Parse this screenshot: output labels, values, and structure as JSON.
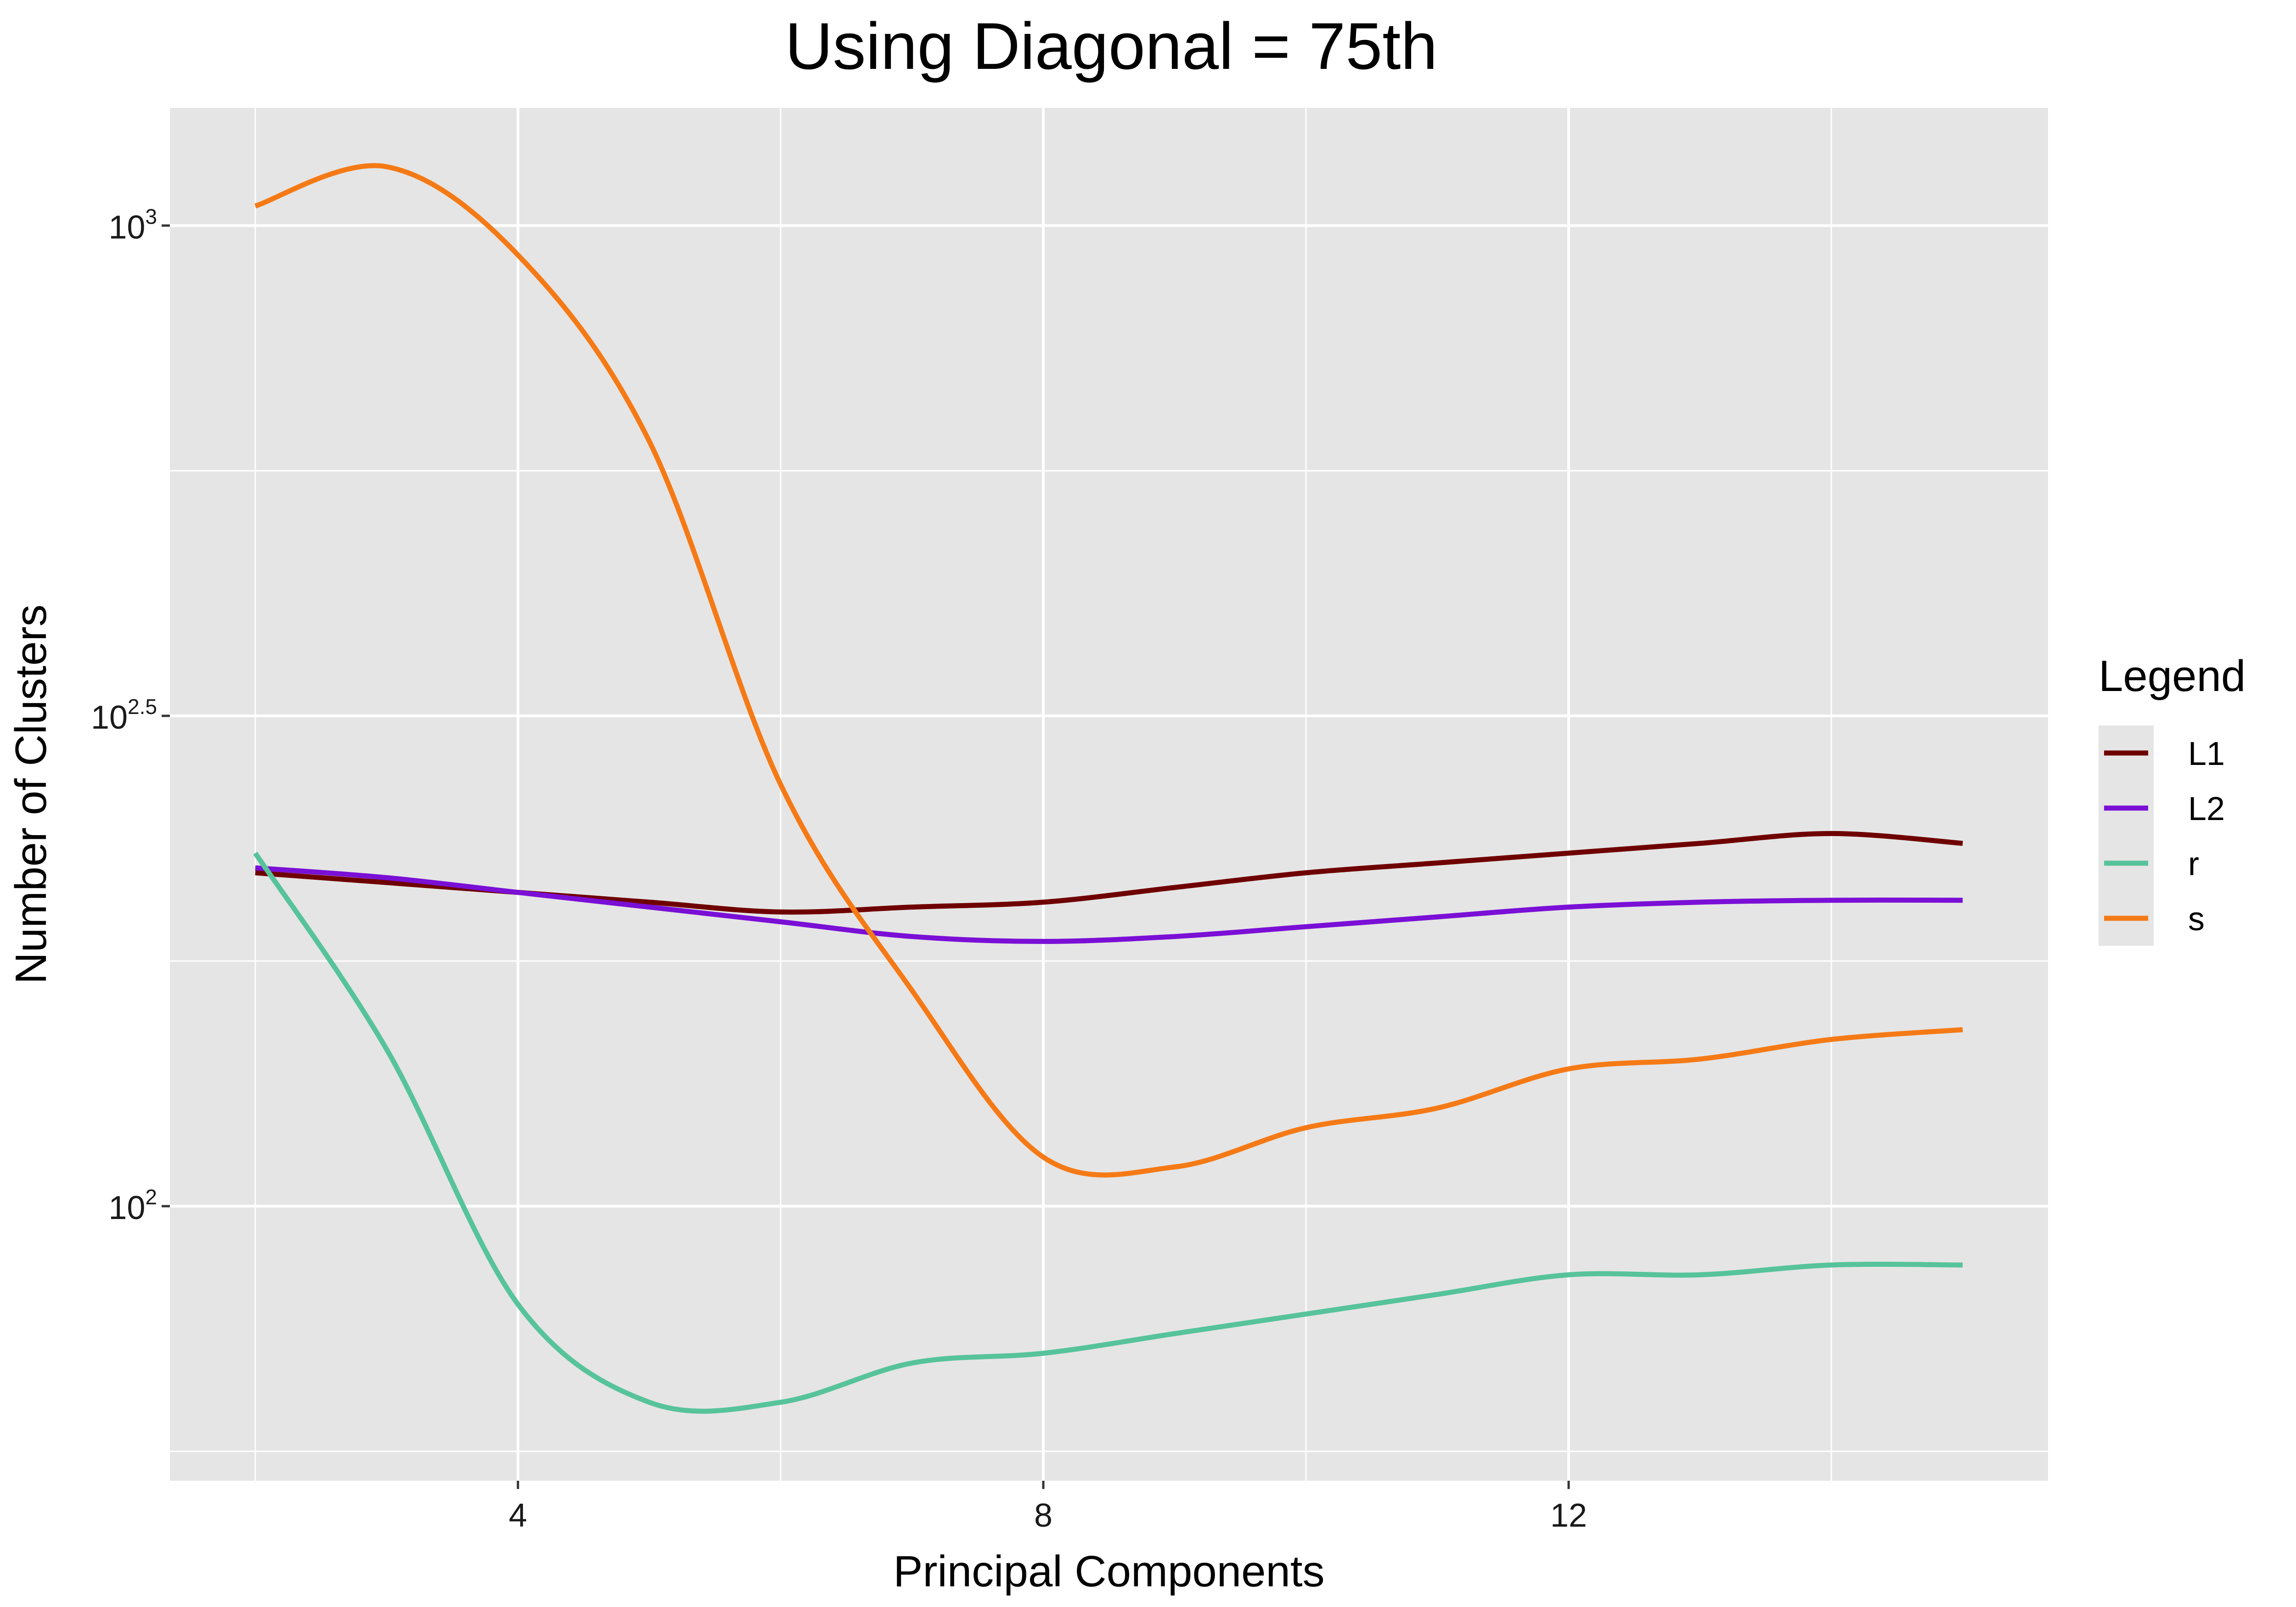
{
  "chart_data": {
    "type": "line",
    "title": "Using Diagonal = 75th",
    "xlabel": "Principal Components",
    "ylabel": "Number of Clusters",
    "xlim": [
      1.35,
      15.65
    ],
    "ylog10lim": [
      1.72,
      3.12
    ],
    "x_ticks": [
      4,
      8,
      12
    ],
    "x_tick_labels": [
      "4",
      "8",
      "12"
    ],
    "y_ticks": [
      {
        "value": 3,
        "base": "10",
        "exp": "3"
      },
      {
        "value": 2.5,
        "base": "10",
        "exp": "2.5"
      },
      {
        "value": 2,
        "base": "10",
        "exp": "2"
      }
    ],
    "y_scale": "log10",
    "grid": true,
    "legend": {
      "title": "Legend",
      "position": "right"
    },
    "background": "#e5e5e5",
    "gridline_color": "#ffffff",
    "series": [
      {
        "name": "L1",
        "color": "#6f0000",
        "points": [
          [
            2,
            2.34
          ],
          [
            3,
            2.33
          ],
          [
            4,
            2.32
          ],
          [
            5,
            2.31
          ],
          [
            6,
            2.3
          ],
          [
            7,
            2.305
          ],
          [
            8,
            2.31
          ],
          [
            9,
            2.325
          ],
          [
            10,
            2.34
          ],
          [
            11,
            2.35
          ],
          [
            12,
            2.36
          ],
          [
            13,
            2.37
          ],
          [
            14,
            2.38
          ],
          [
            15,
            2.37
          ]
        ]
      },
      {
        "name": "L2",
        "color": "#7a0fd6",
        "points": [
          [
            2,
            2.345
          ],
          [
            3,
            2.335
          ],
          [
            4,
            2.32
          ],
          [
            5,
            2.305
          ],
          [
            6,
            2.29
          ],
          [
            7,
            2.275
          ],
          [
            8,
            2.27
          ],
          [
            9,
            2.275
          ],
          [
            10,
            2.285
          ],
          [
            11,
            2.295
          ],
          [
            12,
            2.305
          ],
          [
            13,
            2.31
          ],
          [
            14,
            2.312
          ],
          [
            15,
            2.312
          ]
        ]
      },
      {
        "name": "r",
        "color": "#57c39a",
        "points": [
          [
            2,
            2.36
          ],
          [
            3,
            2.16
          ],
          [
            4,
            1.9
          ],
          [
            5,
            1.8
          ],
          [
            6,
            1.8
          ],
          [
            7,
            1.84
          ],
          [
            8,
            1.85
          ],
          [
            9,
            1.87
          ],
          [
            10,
            1.89
          ],
          [
            11,
            1.91
          ],
          [
            12,
            1.93
          ],
          [
            13,
            1.93
          ],
          [
            14,
            1.94
          ],
          [
            15,
            1.94
          ]
        ]
      },
      {
        "name": "s",
        "color": "#f57a16",
        "points": [
          [
            2,
            3.02
          ],
          [
            3,
            3.06
          ],
          [
            4,
            2.97
          ],
          [
            5,
            2.78
          ],
          [
            6,
            2.43
          ],
          [
            7,
            2.22
          ],
          [
            8,
            2.05
          ],
          [
            9,
            2.04
          ],
          [
            10,
            2.08
          ],
          [
            11,
            2.1
          ],
          [
            12,
            2.14
          ],
          [
            13,
            2.15
          ],
          [
            14,
            2.17
          ],
          [
            15,
            2.18
          ]
        ]
      }
    ]
  }
}
